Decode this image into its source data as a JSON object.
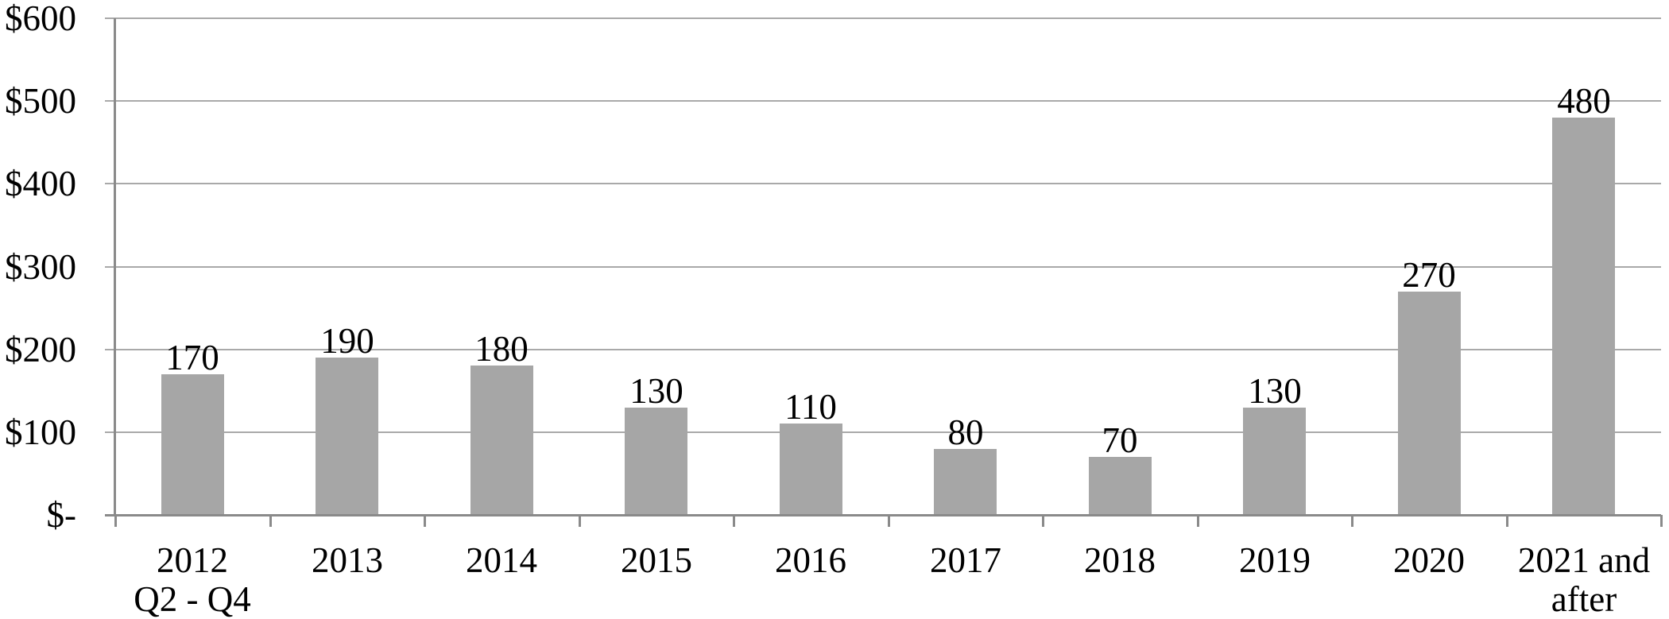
{
  "chart_data": {
    "type": "bar",
    "title": "",
    "xlabel": "",
    "ylabel": "",
    "categories": [
      "2012 Q2 - Q4",
      "2013",
      "2014",
      "2015",
      "2016",
      "2017",
      "2018",
      "2019",
      "2020",
      "2021 and after"
    ],
    "category_lines": [
      [
        "2012",
        "Q2 - Q4"
      ],
      [
        "2013"
      ],
      [
        "2014"
      ],
      [
        "2015"
      ],
      [
        "2016"
      ],
      [
        "2017"
      ],
      [
        "2018"
      ],
      [
        "2019"
      ],
      [
        "2020"
      ],
      [
        "2021 and",
        "after"
      ]
    ],
    "values": [
      170,
      190,
      180,
      130,
      110,
      80,
      70,
      130,
      270,
      480
    ],
    "data_labels": [
      "170",
      "190",
      "180",
      "130",
      "110",
      "80",
      "70",
      "130",
      "270",
      "480"
    ],
    "y_axis": {
      "tick_labels": [
        "$600",
        "$500",
        "$400",
        "$300",
        "$200",
        "$100",
        "$-"
      ],
      "tick_values": [
        600,
        500,
        400,
        300,
        200,
        100,
        0
      ],
      "min": 0,
      "max": 600,
      "step": 100
    },
    "grid": "horizontal",
    "legend": "none",
    "colors": {
      "bar": "#a6a6a6",
      "gridline": "#a9a9a9",
      "axis": "#8a8a8a",
      "text": "#000000",
      "background": "#ffffff"
    }
  }
}
